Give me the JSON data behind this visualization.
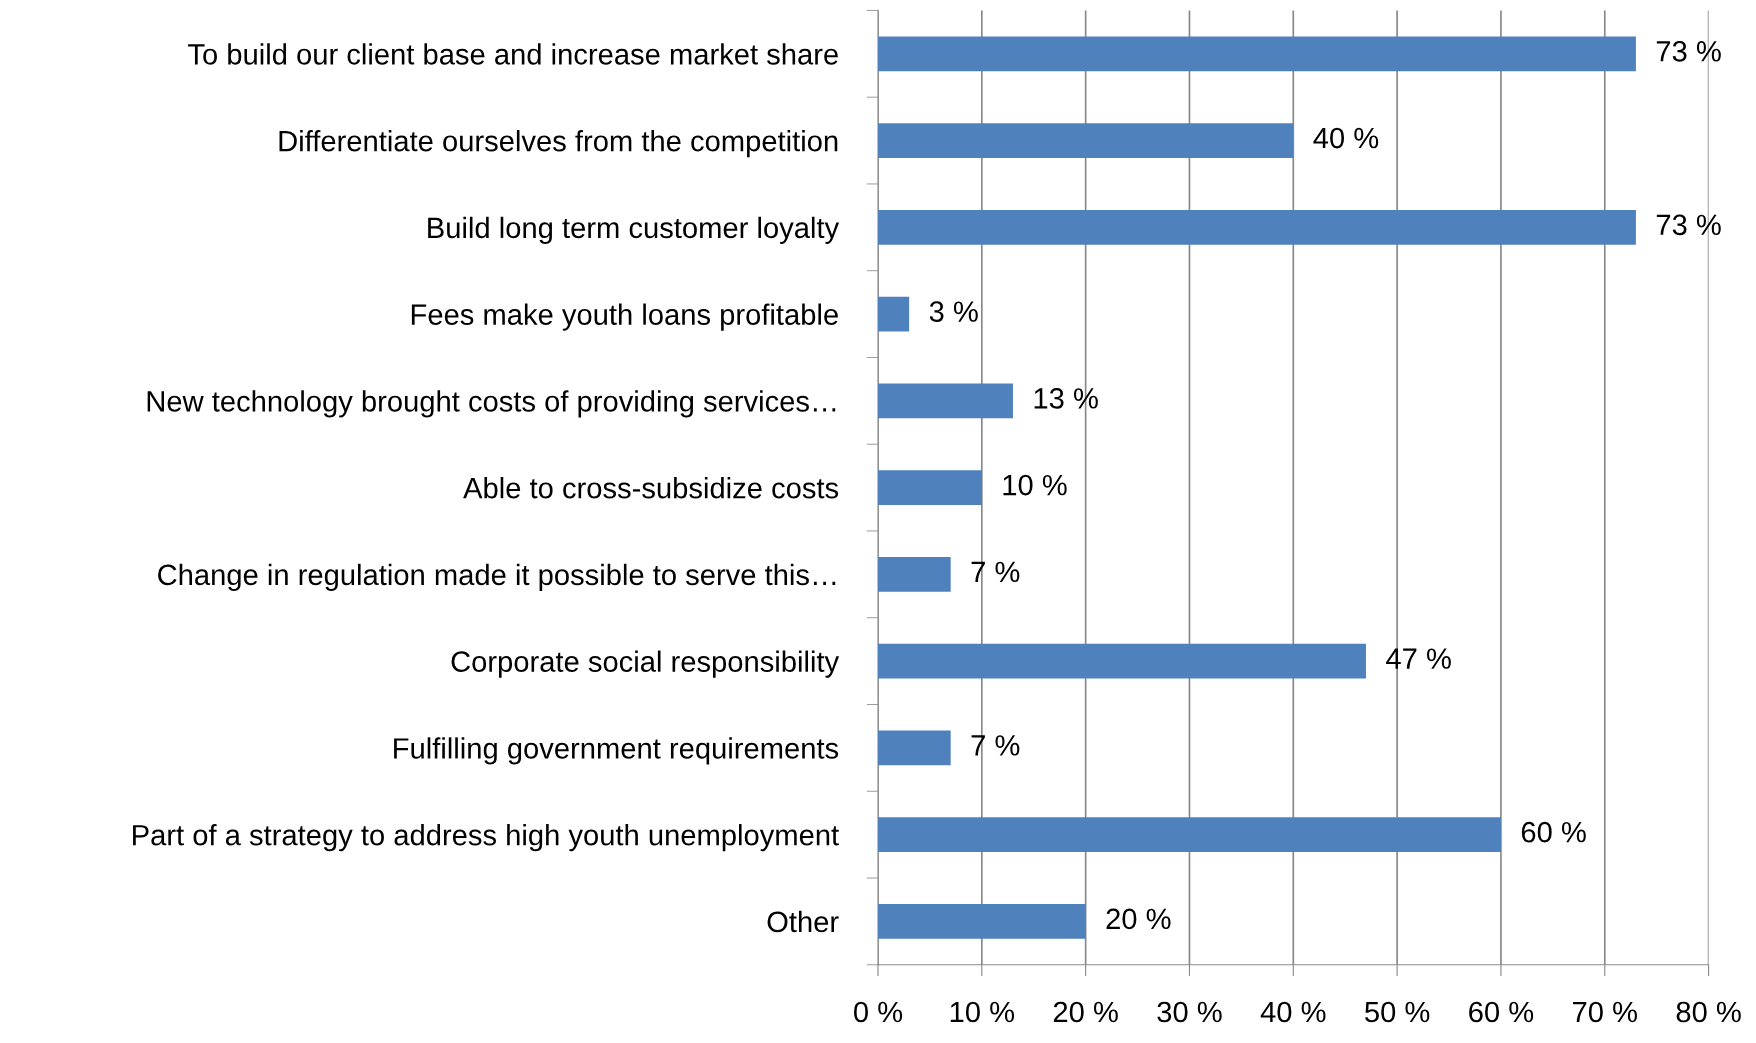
{
  "chart_data": {
    "type": "bar",
    "orientation": "horizontal",
    "categories": [
      "To build our client base and increase market share",
      "Differentiate ourselves from the competition",
      "Build long term customer loyalty",
      "Fees make youth loans profitable",
      "New technology brought costs of providing services…",
      "Able to cross-subsidize costs",
      "Change in regulation made it possible to serve this…",
      "Corporate social responsibility",
      "Fulfilling government requirements",
      "Part of a strategy to address high youth unemployment",
      "Other"
    ],
    "values": [
      73,
      40,
      73,
      3,
      13,
      10,
      7,
      47,
      7,
      60,
      20
    ],
    "value_labels": [
      "73 %",
      "40 %",
      "73 %",
      "3 %",
      "13 %",
      "10 %",
      "7 %",
      "47 %",
      "7 %",
      "60 %",
      "20 %"
    ],
    "color": "#4f81bd",
    "xlim": [
      0,
      80
    ],
    "xticks": [
      {
        "value": 0,
        "label": "0 %"
      },
      {
        "value": 10,
        "label": "10 %"
      },
      {
        "value": 20,
        "label": "20 %"
      },
      {
        "value": 30,
        "label": "30 %"
      },
      {
        "value": 40,
        "label": "40 %"
      },
      {
        "value": 50,
        "label": "50 %"
      },
      {
        "value": 60,
        "label": "60 %"
      },
      {
        "value": 70,
        "label": "70 %"
      },
      {
        "value": 80,
        "label": "80 %"
      }
    ],
    "grid": "x",
    "legend": false
  }
}
